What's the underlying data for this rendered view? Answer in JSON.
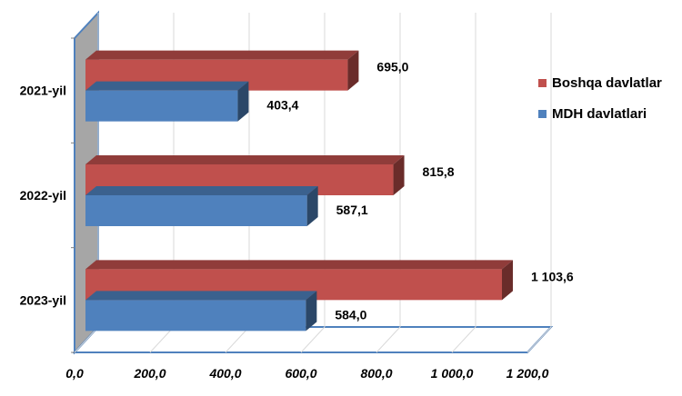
{
  "chart_data": {
    "type": "bar",
    "orientation": "horizontal",
    "style": "3d",
    "categories": [
      "2021-yil",
      "2022-yil",
      "2023-yil"
    ],
    "series": [
      {
        "name": "Boshqa davlatlar",
        "color": "#C0504D",
        "values": [
          695.0,
          815.8,
          1103.6
        ],
        "labels": [
          "695,0",
          "815,8",
          "1 103,6"
        ]
      },
      {
        "name": "MDH davlatlari",
        "color": "#4F81BD",
        "values": [
          403.4,
          587.1,
          584.0
        ],
        "labels": [
          "403,4",
          "587,1",
          "584,0"
        ]
      }
    ],
    "xlim": [
      0,
      1200
    ],
    "xticks": [
      0,
      200,
      400,
      600,
      800,
      1000,
      1200
    ],
    "xtick_labels": [
      "0,0",
      "200,0",
      "400,0",
      "600,0",
      "800,0",
      "1 000,0",
      "1 200,0"
    ],
    "grid": true,
    "legend_position": "right"
  }
}
